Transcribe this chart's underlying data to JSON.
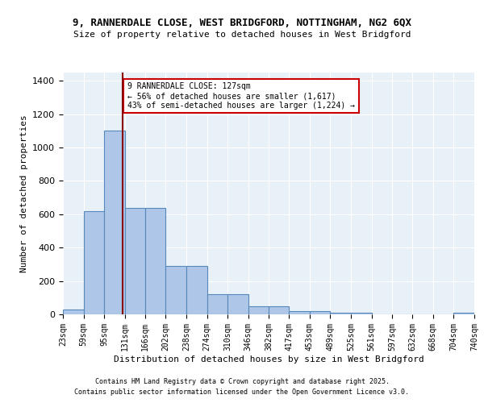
{
  "title1": "9, RANNERDALE CLOSE, WEST BRIDGFORD, NOTTINGHAM, NG2 6QX",
  "title2": "Size of property relative to detached houses in West Bridgford",
  "xlabel": "Distribution of detached houses by size in West Bridgford",
  "ylabel": "Number of detached properties",
  "bar_edges": [
    23,
    59,
    95,
    131,
    166,
    202,
    238,
    274,
    310,
    346,
    382,
    417,
    453,
    489,
    525,
    561,
    597,
    632,
    668,
    704,
    740
  ],
  "bar_heights": [
    30,
    620,
    1100,
    640,
    640,
    290,
    290,
    120,
    120,
    50,
    50,
    20,
    20,
    10,
    10,
    0,
    0,
    0,
    0,
    10,
    0
  ],
  "bar_color": "#aec6e8",
  "bar_edge_color": "#5588bb",
  "property_size": 127,
  "vline_color": "#8b0000",
  "annotation_text": "9 RANNERDALE CLOSE: 127sqm\n← 56% of detached houses are smaller (1,617)\n43% of semi-detached houses are larger (1,224) →",
  "annotation_box_color": "white",
  "annotation_box_edge_color": "#cc0000",
  "ylim": [
    0,
    1450
  ],
  "yticks": [
    0,
    200,
    400,
    600,
    800,
    1000,
    1200,
    1400
  ],
  "bg_color": "#e8f0f8",
  "footer1": "Contains HM Land Registry data © Crown copyright and database right 2025.",
  "footer2": "Contains public sector information licensed under the Open Government Licence v3.0."
}
